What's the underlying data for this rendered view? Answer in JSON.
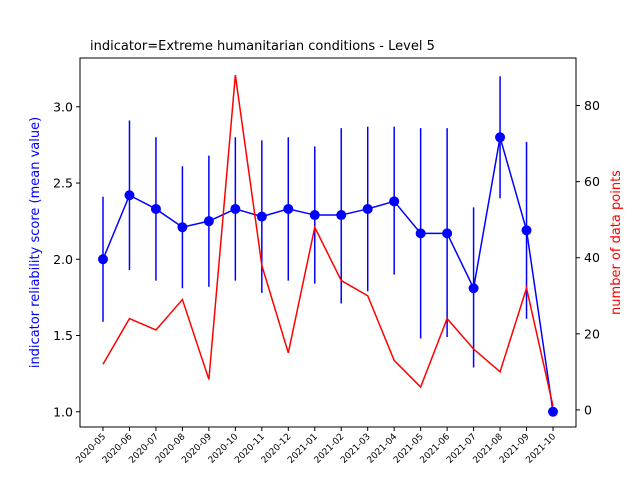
{
  "chart_data": {
    "type": "line",
    "title": "indicator=Extreme humanitarian conditions - Level 5",
    "categories": [
      "2020-05",
      "2020-06",
      "2020-07",
      "2020-08",
      "2020-09",
      "2020-10",
      "2020-11",
      "2020-12",
      "2021-01",
      "2021-02",
      "2021-03",
      "2021-04",
      "2021-05",
      "2021-06",
      "2021-07",
      "2021-08",
      "2021-09",
      "2021-10"
    ],
    "left_axis": {
      "label": "indicator reliability score (mean value)",
      "color": "#0000ff",
      "ylim": [
        0.9,
        3.32
      ],
      "ticks": [
        "1.0",
        "1.5",
        "2.0",
        "2.5",
        "3.0"
      ]
    },
    "right_axis": {
      "label": "number of data points",
      "color": "#ff0000",
      "ylim": [
        -4.5,
        92.5
      ],
      "ticks": [
        "0",
        "20",
        "40",
        "60",
        "80"
      ]
    },
    "series": [
      {
        "axis": "left",
        "color": "#0000ff",
        "values": [
          2.0,
          2.42,
          2.33,
          2.21,
          2.25,
          2.33,
          2.28,
          2.33,
          2.29,
          2.29,
          2.33,
          2.38,
          2.17,
          2.17,
          1.81,
          2.8,
          2.19,
          1.0
        ],
        "error_low": [
          1.59,
          1.93,
          1.86,
          1.81,
          1.82,
          1.86,
          1.78,
          1.86,
          1.84,
          1.71,
          1.79,
          1.9,
          1.48,
          1.49,
          1.29,
          2.4,
          1.61,
          1.0
        ],
        "error_high": [
          2.41,
          2.91,
          2.8,
          2.61,
          2.68,
          2.8,
          2.78,
          2.8,
          2.74,
          2.86,
          2.87,
          2.87,
          2.86,
          2.86,
          2.34,
          3.2,
          2.77,
          1.0
        ]
      },
      {
        "axis": "right",
        "color": "#ff0000",
        "values": [
          12,
          24,
          21,
          29,
          8,
          88,
          38,
          15,
          48,
          34,
          30,
          13,
          6,
          24,
          16,
          10,
          32,
          1
        ]
      }
    ],
    "grid": false
  }
}
